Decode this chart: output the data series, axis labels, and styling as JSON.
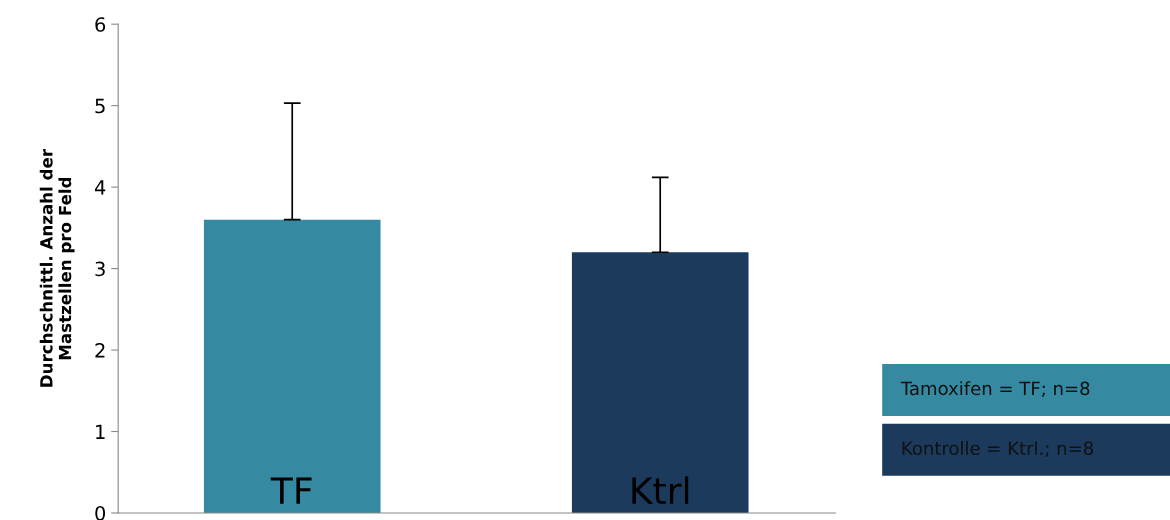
{
  "chart_data": {
    "type": "bar",
    "ylabel": "Durchschnittl. Anzahl der\nMastzellen pro Feld",
    "categories": [
      "TF",
      "Ktrl"
    ],
    "values": [
      3.6,
      3.2
    ],
    "errors": [
      [
        3.6,
        5.03
      ],
      [
        3.2,
        4.12
      ]
    ],
    "colors": [
      "#3589a0",
      "#1b3a5c"
    ],
    "ylim": [
      0,
      6
    ],
    "yticks": [
      0,
      1,
      2,
      3,
      4,
      5,
      6
    ],
    "grid": false,
    "annotations": [
      "Tamoxifen = TF; n=8",
      "Kontrolle = Ktrl.; n=8"
    ]
  }
}
